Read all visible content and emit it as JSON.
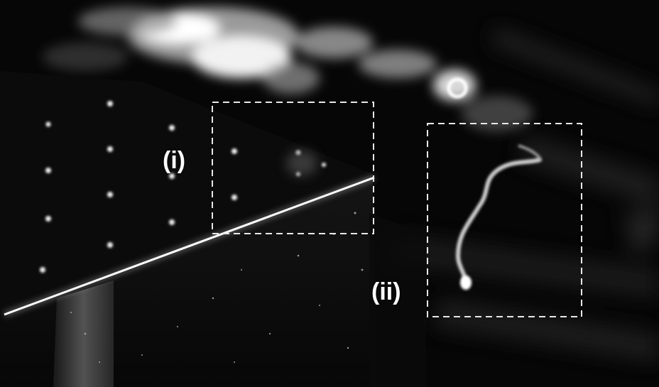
{
  "image": {
    "description_kind": "photograph",
    "colors": {
      "background": "#050505",
      "highlight": "#ffffff",
      "box_outline": "#e8e8e8"
    }
  },
  "annotations": {
    "region_i": {
      "label": "(i)"
    },
    "region_ii": {
      "label": "(ii)"
    }
  }
}
